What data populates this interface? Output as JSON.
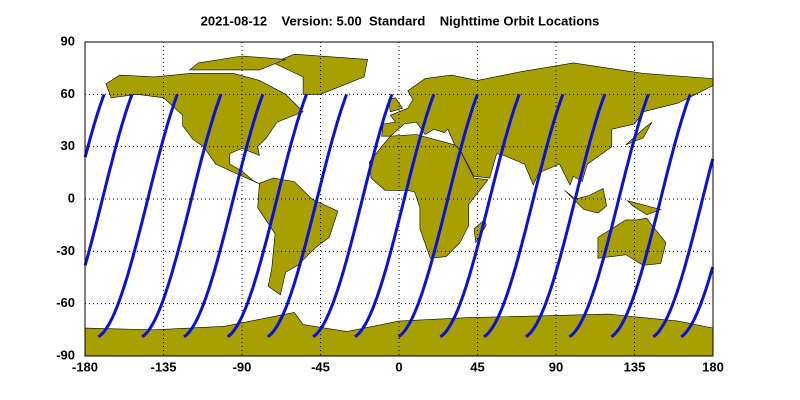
{
  "chart_data": {
    "type": "map",
    "title": "2021-08-12    Version: 5.00  Standard    Nighttime Orbit Locations",
    "xlim": [
      -180,
      180
    ],
    "xticks": [
      -180,
      -135,
      -90,
      -45,
      0,
      45,
      90,
      135,
      180
    ],
    "ylim": [
      -90,
      90
    ],
    "yticks": [
      -90,
      -60,
      -30,
      0,
      30,
      60,
      90
    ],
    "grid": true,
    "land_color": "#a8a000",
    "track_color": "#0a10e0",
    "orbit_equator_longitudes": [
      -170,
      -144,
      -119,
      -95,
      -70,
      -47,
      -21,
      3,
      28,
      52,
      77,
      101,
      126,
      150,
      174
    ]
  }
}
